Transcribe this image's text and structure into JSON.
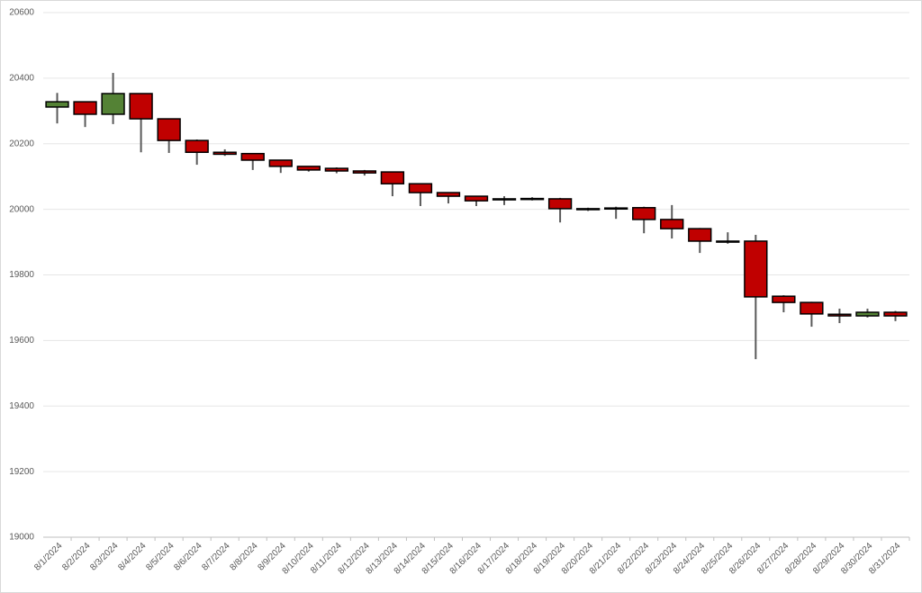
{
  "chart_data": {
    "type": "candlestick",
    "categories": [
      "8/1/2024",
      "8/2/2024",
      "8/3/2024",
      "8/4/2024",
      "8/5/2024",
      "8/6/2024",
      "8/7/2024",
      "8/8/2024",
      "8/9/2024",
      "8/10/2024",
      "8/11/2024",
      "8/12/2024",
      "8/13/2024",
      "8/14/2024",
      "8/15/2024",
      "8/16/2024",
      "8/17/2024",
      "8/18/2024",
      "8/19/2024",
      "8/20/2024",
      "8/21/2024",
      "8/22/2024",
      "8/23/2024",
      "8/24/2024",
      "8/25/2024",
      "8/26/2024",
      "8/27/2024",
      "8/28/2024",
      "8/29/2024",
      "8/30/2024",
      "8/31/2024"
    ],
    "open": [
      20312,
      20328,
      20290,
      20353,
      20276,
      20210,
      20174,
      20170,
      20150,
      20131,
      20125,
      20117,
      20114,
      20078,
      20051,
      20040,
      20032,
      20033,
      20032,
      20002,
      20004,
      20005,
      19969,
      19941,
      19903,
      19903,
      19735,
      19716,
      19680,
      19675,
      19686
    ],
    "high": [
      20355,
      20328,
      20416,
      20353,
      20276,
      20213,
      20183,
      20170,
      20150,
      20131,
      20128,
      20120,
      20114,
      20078,
      20051,
      20040,
      20040,
      20037,
      20035,
      20005,
      20008,
      20008,
      20013,
      19943,
      19930,
      19922,
      19738,
      19718,
      19697,
      19697,
      19690
    ],
    "low": [
      20262,
      20251,
      20260,
      20174,
      20172,
      20136,
      20163,
      20120,
      20111,
      20115,
      20110,
      20103,
      20040,
      20010,
      20018,
      20010,
      20013,
      20027,
      19960,
      19995,
      19971,
      19927,
      19911,
      19867,
      19895,
      19543,
      19686,
      19642,
      19653,
      19670,
      19659
    ],
    "close": [
      20328,
      20290,
      20353,
      20276,
      20210,
      20174,
      20168,
      20150,
      20131,
      20120,
      20117,
      20111,
      20078,
      20051,
      20040,
      20026,
      20029,
      20030,
      20002,
      19999,
      20001,
      19969,
      19941,
      19903,
      19900,
      19733,
      19716,
      19681,
      19675,
      19686,
      19675
    ],
    "up_color": "#548235",
    "down_color": "#c00000",
    "wick_color": "#595959",
    "ylim": [
      19000,
      20600
    ],
    "yticks": [
      19000,
      19200,
      19400,
      19600,
      19800,
      20000,
      20200,
      20400,
      20600
    ],
    "grid": true
  }
}
